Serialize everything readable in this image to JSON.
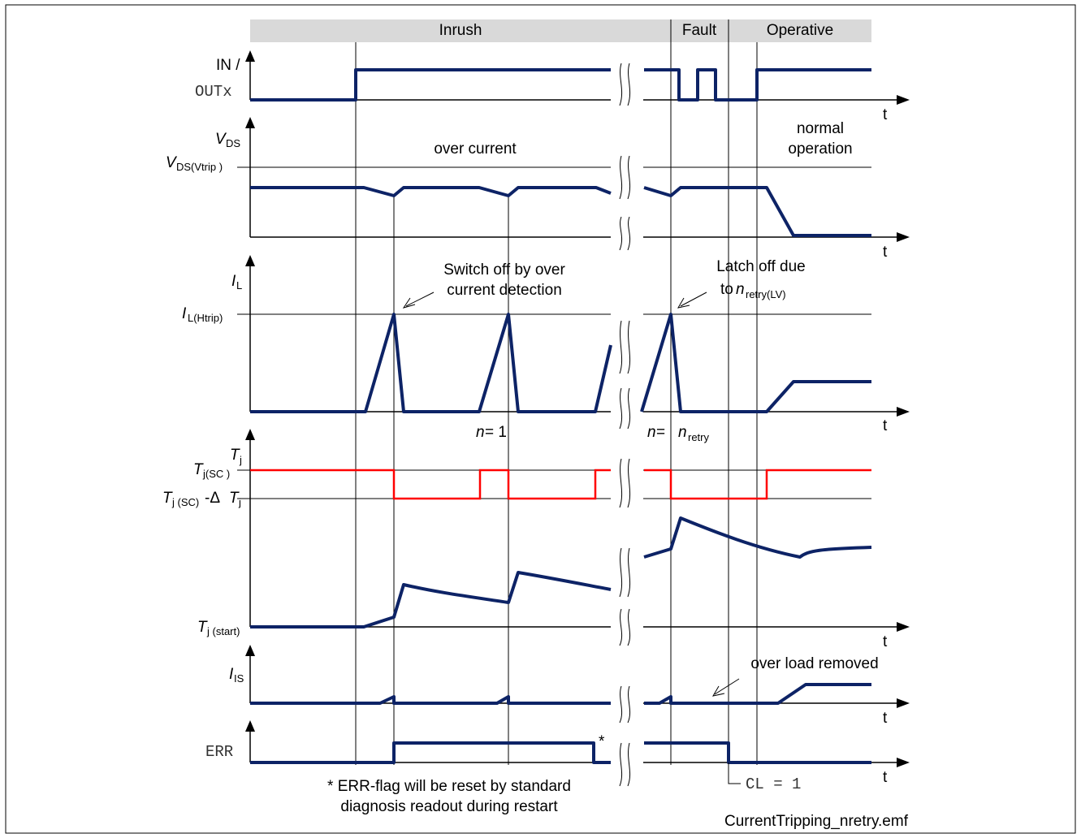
{
  "phases": {
    "inrush": "Inrush",
    "fault": "Fault",
    "operative": "Operative"
  },
  "axis_time": "t",
  "in_label_1": "IN /",
  "in_label_2": "OUTx",
  "vds": {
    "axis_main": "V",
    "axis_sub": "DS",
    "trip_main": "V",
    "trip_sub": "DS(Vtrip )"
  },
  "il": {
    "axis_main": "I",
    "axis_sub": "L",
    "trip_main": "I",
    "trip_sub": "L(Htrip)"
  },
  "tj": {
    "axis_main": "T",
    "axis_sub": "j",
    "sc_main": "T",
    "sc_sub": "j(SC )",
    "hyst_main": "T",
    "hyst_sub": "j (SC)",
    "hyst_mid": "-Δ",
    "hyst_main2": "T",
    "hyst_sub2": "j",
    "start_main": "T",
    "start_sub": "j (start)"
  },
  "is": {
    "axis_main": "I",
    "axis_sub": "IS"
  },
  "err": {
    "axis": "ERR",
    "star": "*"
  },
  "annotations": {
    "over_current": "over current",
    "normal_op_1": "normal",
    "normal_op_2": "operation",
    "switch_off_1": "Switch off by over",
    "switch_off_2": "current detection",
    "latch_off_1": "Latch off due",
    "latch_off_2_pre": "to ",
    "latch_off_2_n": "n",
    "latch_off_2_sub": "retry(LV)",
    "n_eq_1_n": "n",
    "n_eq_1_rest": " = 1",
    "n_eq_retry_n": "n",
    "n_eq_retry_eq": " = ",
    "n_eq_retry_n2": "n",
    "n_eq_retry_sub": "retry",
    "over_load_removed": "over load removed",
    "cl": "CL = 1",
    "err_note_1": "* ERR-flag will be reset by standard",
    "err_note_2": "diagnosis readout during restart",
    "filename": "CurrentTripping_nretry.emf"
  },
  "colors": {
    "signal": "#0d2366",
    "threshold": "#ff0000",
    "phase_bar": "#d9d9d9"
  }
}
